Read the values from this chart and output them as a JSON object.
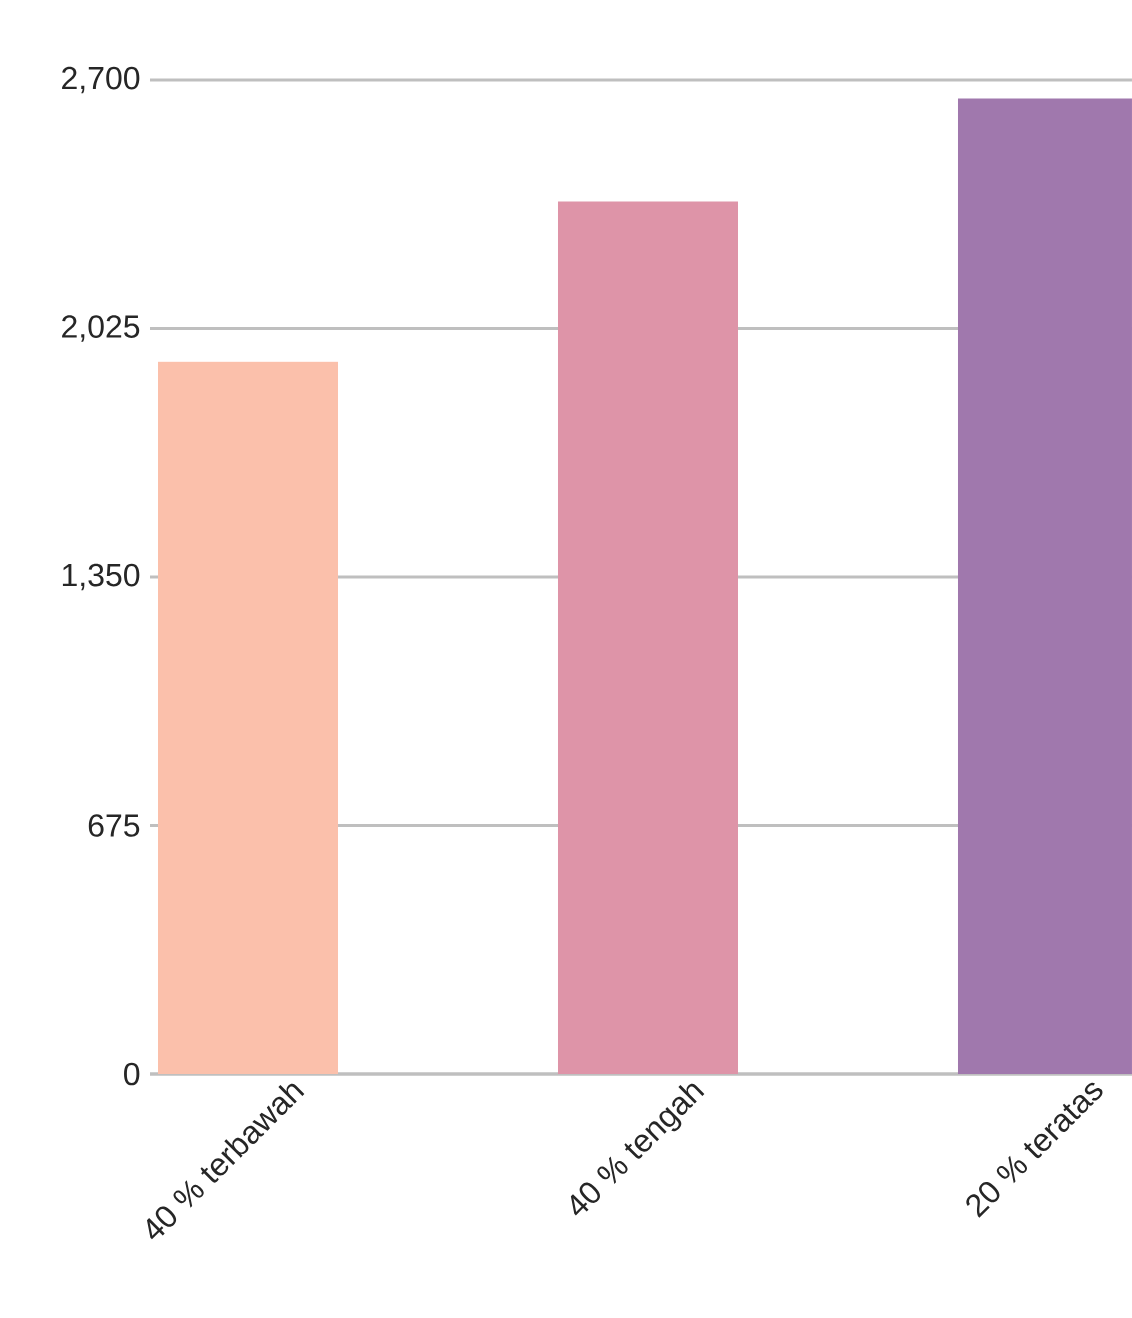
{
  "chart_data": {
    "type": "bar",
    "categories": [
      "40 % terbawah",
      "40 % tengah",
      "20 % teratas"
    ],
    "values": [
      1935,
      2370,
      2650
    ],
    "colors": [
      "#fbc0ab",
      "#de94a8",
      "#a078ad"
    ],
    "ylim": [
      0,
      2700
    ],
    "yticks": [
      {
        "value": 0,
        "label": "0"
      },
      {
        "value": 675,
        "label": "675"
      },
      {
        "value": 1350,
        "label": "1,350"
      },
      {
        "value": 2025,
        "label": "2,025"
      },
      {
        "value": 2700,
        "label": "2,700"
      }
    ],
    "grid": "y"
  }
}
